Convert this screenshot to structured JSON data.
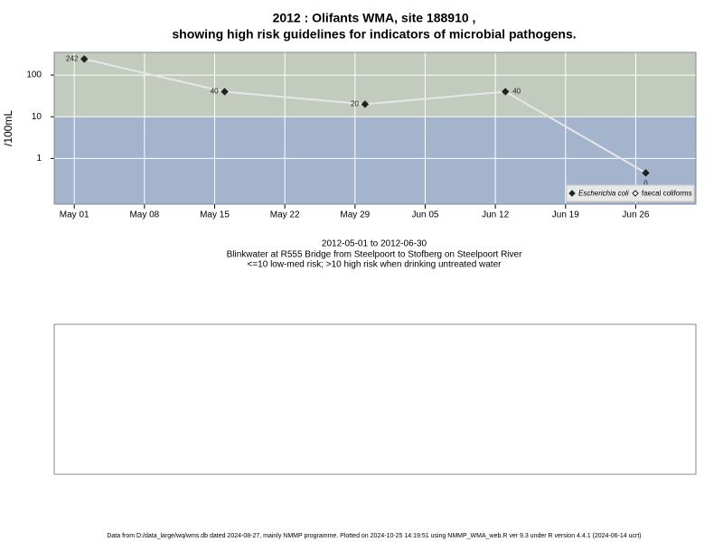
{
  "chart_data": {
    "type": "line",
    "title": "2012 : Olifants WMA, site 188910 ,",
    "title2": "showing high risk guidelines for indicators of microbial pathogens.",
    "subtitle": [
      "2012-05-01 to 2012-06-30",
      "Blinkwater at R555 Bridge from Steelpoort to Stofberg on Steelpoort River",
      "<=10 low-med risk; >10 high risk when drinking untreated water"
    ],
    "ylabel": "/100mL",
    "footer": "Data from D:/data_large/wq/wms.db dated 2024-08-27, mainly NMMP programme. Plotted on 2024-10-25 14:19:51 using NMMP_WMA_web.R ver 9.3 under R version 4.4.1 (2024-06-14 ucrt)",
    "x": [
      "2012-05-02",
      "2012-05-16",
      "2012-05-30",
      "2012-06-13",
      "2012-06-27"
    ],
    "series": [
      {
        "name": "Escherichia coli",
        "color": "#222222",
        "marker": "filled",
        "values": [
          242,
          40,
          20,
          40,
          0.45
        ],
        "value_labels": [
          "242",
          "40",
          "20",
          "40",
          "0"
        ]
      },
      {
        "name": "faecal coliforms",
        "color": "#222222",
        "marker": "open",
        "values": [
          null,
          null,
          null,
          null,
          null
        ]
      }
    ],
    "line_color": "#e6e6e6",
    "log_y": true,
    "ylim": [
      0.08,
      350
    ],
    "yticks": [
      1,
      10,
      100
    ],
    "xlim": [
      "2012-04-29",
      "2012-07-02"
    ],
    "xticks": [
      {
        "value": "2012-05-01",
        "label": "May 01"
      },
      {
        "value": "2012-05-08",
        "label": "May 08"
      },
      {
        "value": "2012-05-15",
        "label": "May 15"
      },
      {
        "value": "2012-05-22",
        "label": "May 22"
      },
      {
        "value": "2012-05-29",
        "label": "May 29"
      },
      {
        "value": "2012-06-05",
        "label": "Jun 05"
      },
      {
        "value": "2012-06-12",
        "label": "Jun 12"
      },
      {
        "value": "2012-06-19",
        "label": "Jun 19"
      },
      {
        "value": "2012-06-26",
        "label": "Jun 26"
      }
    ],
    "threshold": 10,
    "zone_colors": [
      "#a3b4cc",
      "#c3cbbf"
    ],
    "grid": true,
    "legend": "bottom-right"
  }
}
